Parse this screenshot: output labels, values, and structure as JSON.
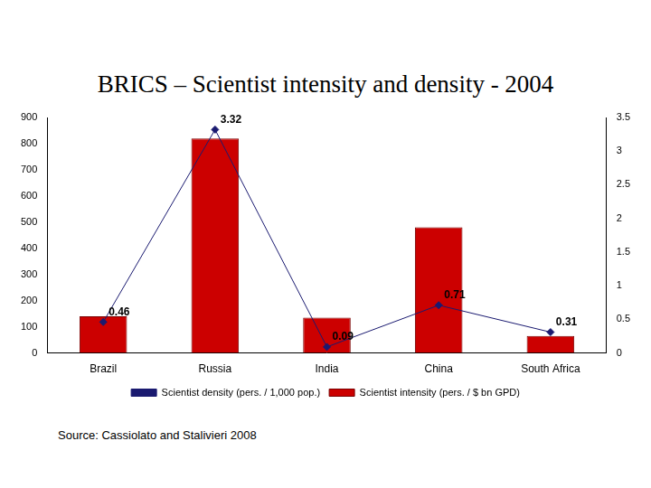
{
  "chart_data": {
    "type": "bar",
    "title": "BRICS – Scientist intensity and density - 2004",
    "source": "Source: Cassiolato and Stalivieri 2008",
    "categories": [
      "Brazil",
      "Russia",
      "India",
      "China",
      "South Africa"
    ],
    "series": [
      {
        "name": "Scientist intensity (pers. / $ bn GPD)",
        "type": "bar",
        "color": "#cc0000",
        "values": [
          140,
          820,
          135,
          480,
          65
        ]
      },
      {
        "name": "Scientist density (pers. / 1,000 pop.)",
        "type": "line",
        "axis": "y2",
        "color": "#1a1a70",
        "marker": "diamond",
        "line_style": "solid",
        "data_labels": true,
        "values": [
          0.46,
          3.32,
          0.09,
          0.71,
          0.31
        ]
      }
    ],
    "ylim": [
      0,
      900
    ],
    "yticks": [
      0,
      100,
      200,
      300,
      400,
      500,
      600,
      700,
      800,
      900
    ],
    "y2lim": [
      0,
      3.5
    ],
    "y2ticks": [
      0,
      0.5,
      1,
      1.5,
      2,
      2.5,
      3,
      3.5
    ],
    "grid": false,
    "legend": "bottom"
  }
}
